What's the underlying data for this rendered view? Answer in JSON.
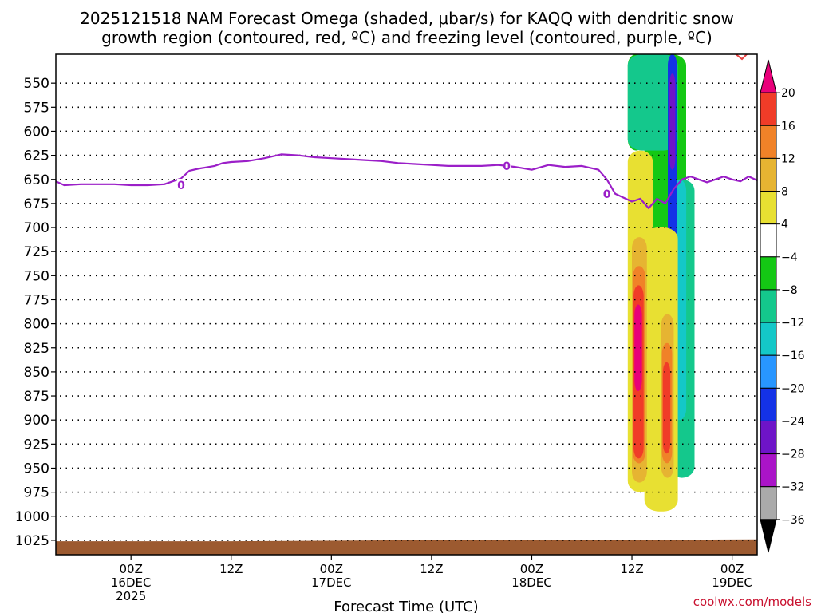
{
  "chart_data": {
    "type": "heatmap",
    "title_lines": [
      "2025121518 NAM Forecast Omega (shaded, μbar/s) for KAQQ with dendritic snow",
      "growth region (contoured, red, ºC) and freezing level (contoured, purple, ºC)"
    ],
    "xlabel": "Forecast Time (UTC)",
    "credit": "coolwx.com/models",
    "x_axis": {
      "unit": "hours since 2025-12-16 00Z",
      "range": [
        -9,
        75
      ],
      "ticks": [
        {
          "h": 0,
          "l1": "00Z",
          "l2": "16DEC",
          "l3": "2025"
        },
        {
          "h": 12,
          "l1": "12Z",
          "l2": "",
          "l3": ""
        },
        {
          "h": 24,
          "l1": "00Z",
          "l2": "17DEC",
          "l3": ""
        },
        {
          "h": 36,
          "l1": "12Z",
          "l2": "",
          "l3": ""
        },
        {
          "h": 48,
          "l1": "00Z",
          "l2": "18DEC",
          "l3": ""
        },
        {
          "h": 60,
          "l1": "12Z",
          "l2": "",
          "l3": ""
        },
        {
          "h": 72,
          "l1": "00Z",
          "l2": "19DEC",
          "l3": ""
        }
      ]
    },
    "y_axis": {
      "unit": "hPa",
      "range": [
        1040,
        520
      ],
      "ticks": [
        "550",
        "575",
        "600",
        "625",
        "650",
        "675",
        "700",
        "725",
        "750",
        "775",
        "800",
        "825",
        "850",
        "875",
        "900",
        "925",
        "950",
        "975",
        "1000",
        "1025"
      ]
    },
    "colorbar": {
      "labels": [
        "20",
        "16",
        "12",
        "8",
        "4",
        "−4",
        "−8",
        "−12",
        "−16",
        "−20",
        "−24",
        "−28",
        "−32",
        "−36"
      ],
      "colors": [
        "#e8007a",
        "#f03c28",
        "#f08228",
        "#e6b432",
        "#e8e032",
        "#ffffff",
        "#14c814",
        "#14c88c",
        "#14c8c8",
        "#2896ff",
        "#1432e6",
        "#6e14c8",
        "#aa14c8",
        "#aaaaaa",
        "#000000"
      ]
    },
    "freezing_level": {
      "label": "0",
      "color": "#9b1fc8",
      "hours": [
        -9,
        -8,
        -6,
        -4,
        -2,
        0,
        2,
        4,
        6,
        7,
        8,
        10,
        11,
        12,
        14,
        16,
        18,
        20,
        22,
        24,
        26,
        28,
        30,
        32,
        34,
        36,
        38,
        40,
        42,
        44,
        46,
        48,
        50,
        52,
        54,
        56,
        57,
        58,
        60,
        61,
        62,
        63,
        64,
        65,
        66,
        67,
        68,
        69,
        70,
        71,
        72,
        73,
        74,
        75
      ],
      "pressure_hPa": [
        652,
        656,
        655,
        655,
        655,
        656,
        656,
        655,
        649,
        641,
        639,
        636,
        633,
        632,
        631,
        628,
        624,
        625,
        627,
        628,
        629,
        630,
        631,
        633,
        634,
        635,
        636,
        636,
        636,
        635,
        637,
        640,
        635,
        637,
        636,
        640,
        650,
        665,
        673,
        670,
        680,
        670,
        675,
        660,
        650,
        647,
        650,
        653,
        650,
        647,
        650,
        652,
        647,
        651
      ]
    },
    "omega_regions": [
      {
        "level": "-4",
        "color": "#14c814",
        "hours": [
          [
            59.5,
            61.5
          ],
          [
            61.5,
            66.5
          ]
        ],
        "pressure_hPa": [
          [
            520,
            620
          ],
          [
            520,
            960
          ]
        ]
      },
      {
        "level": "-8",
        "color": "#14c88c",
        "hours": [
          [
            59.5,
            65.5
          ],
          [
            64.5,
            67.5
          ]
        ],
        "pressure_hPa": [
          [
            520,
            620
          ],
          [
            650,
            960
          ]
        ]
      },
      {
        "level": "-16",
        "color": "#14c8c8",
        "hours": [
          [
            64.8,
            66.5
          ]
        ],
        "pressure_hPa": [
          [
            650,
            900
          ]
        ]
      },
      {
        "level": "-24",
        "color": "#1432e6",
        "hours": [
          [
            64.3,
            65.4
          ]
        ],
        "pressure_hPa": [
          [
            520,
            730
          ]
        ]
      },
      {
        "level": "-28",
        "color": "#6e14c8",
        "hours": [
          [
            64.5,
            65.2
          ]
        ],
        "pressure_hPa": [
          [
            540,
            640
          ]
        ]
      },
      {
        "level": "4",
        "color": "#e8e032",
        "hours": [
          [
            59.5,
            62.5
          ],
          [
            61.5,
            65.5
          ]
        ],
        "pressure_hPa": [
          [
            620,
            975
          ],
          [
            700,
            995
          ]
        ]
      },
      {
        "level": "8",
        "color": "#e6b432",
        "hours": [
          [
            60,
            61.8
          ],
          [
            63.5,
            65
          ]
        ],
        "pressure_hPa": [
          [
            710,
            965
          ],
          [
            790,
            960
          ]
        ]
      },
      {
        "level": "12",
        "color": "#f08228",
        "hours": [
          [
            60.1,
            61.6
          ],
          [
            63.6,
            64.8
          ]
        ],
        "pressure_hPa": [
          [
            740,
            945
          ],
          [
            820,
            945
          ]
        ]
      },
      {
        "level": "16",
        "color": "#f03c28",
        "hours": [
          [
            60.2,
            61.4
          ],
          [
            63.7,
            64.6
          ]
        ],
        "pressure_hPa": [
          [
            760,
            940
          ],
          [
            840,
            935
          ]
        ]
      },
      {
        "level": "20",
        "color": "#e8007a",
        "hours": [
          [
            60.3,
            61.2
          ]
        ],
        "pressure_hPa": [
          [
            780,
            870
          ]
        ]
      }
    ],
    "terrain": {
      "color": "#9c5a30",
      "surface_hPa": [
        1026,
        1026,
        1025,
        1025,
        1024
      ]
    }
  }
}
